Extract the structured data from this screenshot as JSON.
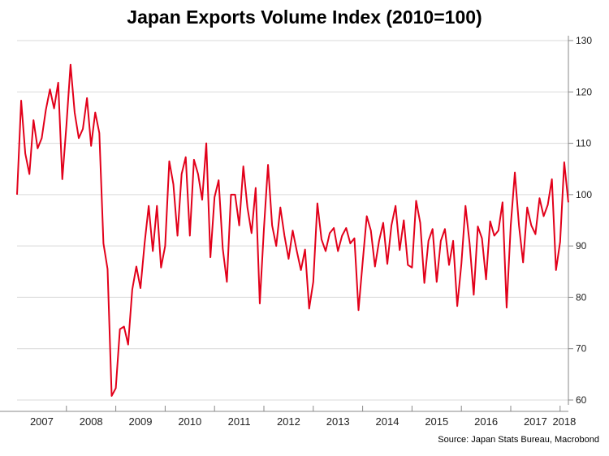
{
  "chart_data": {
    "type": "line",
    "title": "Japan Exports Volume Index (2010=100)",
    "source": "Source: Japan Stats Bureau, Macrobond",
    "xlabel": "",
    "ylabel": "",
    "ylim": [
      60,
      130
    ],
    "yticks": [
      60,
      70,
      80,
      90,
      100,
      110,
      120,
      130
    ],
    "grid": true,
    "line_color": "#e2001a",
    "year_labels": [
      "2007",
      "2008",
      "2009",
      "2010",
      "2011",
      "2012",
      "2013",
      "2014",
      "2015",
      "2016",
      "2017",
      "2018"
    ],
    "x_start": "2007-01",
    "x_end": "2018-07",
    "series": [
      {
        "values": [
          100.0,
          118.3,
          108.0,
          104.0,
          114.5,
          109.0,
          111.0,
          116.5,
          120.5,
          116.8,
          121.8,
          103.0,
          113.5,
          125.3,
          116.0,
          111.0,
          112.8,
          118.8,
          109.5,
          116.0,
          112.0,
          90.5,
          85.5,
          60.8,
          62.3,
          73.8,
          74.3,
          70.8,
          81.5,
          86.0,
          81.8,
          90.5,
          97.8,
          89.0,
          97.8,
          85.8,
          90.0,
          106.5,
          102.0,
          92.0,
          104.0,
          107.3,
          92.0,
          106.8,
          104.0,
          99.0,
          110.0,
          87.8,
          99.5,
          102.8,
          89.5,
          83.0,
          100.0,
          100.0,
          94.0,
          105.5,
          97.5,
          92.5,
          101.3,
          78.8,
          93.3,
          105.8,
          94.0,
          90.0,
          97.5,
          92.0,
          87.5,
          93.0,
          89.0,
          85.3,
          89.3,
          77.8,
          83.0,
          98.3,
          91.3,
          89.0,
          92.5,
          93.5,
          89.0,
          92.0,
          93.5,
          90.5,
          91.5,
          77.5,
          86.8,
          95.8,
          93.0,
          86.0,
          91.0,
          94.5,
          86.5,
          94.0,
          97.8,
          89.2,
          95.0,
          86.3,
          85.8,
          98.8,
          94.5,
          82.8,
          91.0,
          93.3,
          83.0,
          91.0,
          93.3,
          86.3,
          91.0,
          78.3,
          86.5,
          97.8,
          90.5,
          80.5,
          93.8,
          91.5,
          83.5,
          94.8,
          92.0,
          93.0,
          98.5,
          78.0,
          94.0,
          104.3,
          94.0,
          86.8,
          97.5,
          94.0,
          92.3,
          99.3,
          95.8,
          98.0,
          103.0,
          85.3,
          90.8,
          106.3,
          98.5
        ]
      }
    ]
  }
}
